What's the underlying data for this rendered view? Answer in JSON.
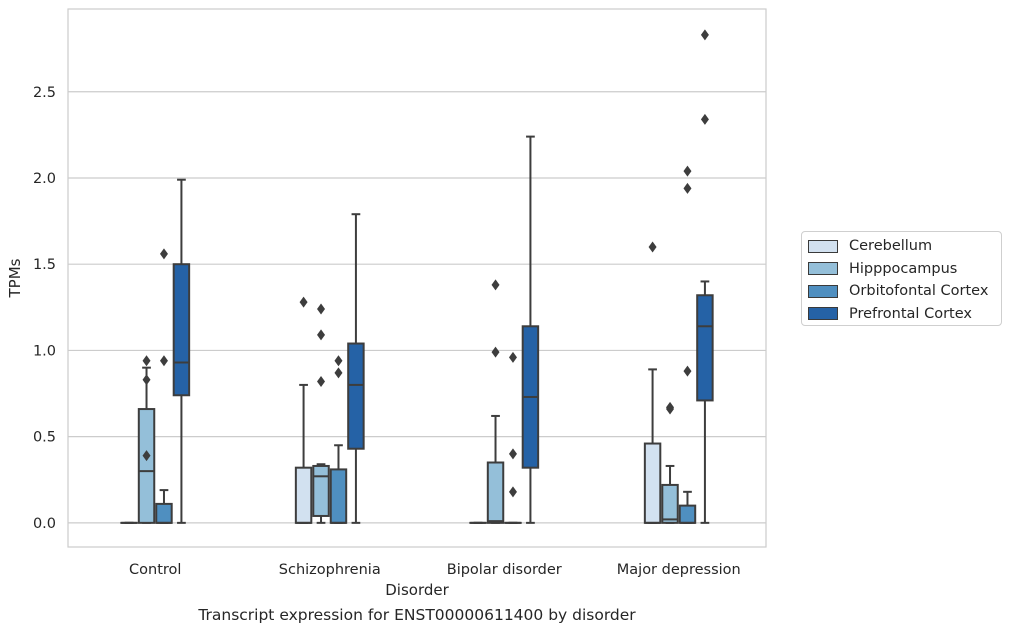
{
  "caption": "Transcript expression for ENST00000611400 by disorder",
  "chart_data": {
    "type": "boxplot",
    "title": "",
    "xlabel": "Disorder",
    "ylabel": "TPMs",
    "ylim": [
      -0.14,
      2.98
    ],
    "yticks": [
      0.0,
      0.5,
      1.0,
      1.5,
      2.0,
      2.5
    ],
    "ytick_labels": [
      "0.0",
      "0.5",
      "1.0",
      "1.5",
      "2.0",
      "2.5"
    ],
    "grid": "horizontal",
    "legend_position": "right",
    "categories": [
      "Control",
      "Schizophrenia",
      "Bipolar disorder",
      "Major depression"
    ],
    "series": [
      {
        "name": "Cerebellum",
        "color": "#d2e1f0",
        "boxes": [
          {
            "q1": 0.0,
            "median": 0.0,
            "q3": 0.0,
            "whislo": 0.0,
            "whishi": 0.0,
            "fliers": []
          },
          {
            "q1": 0.0,
            "median": 0.0,
            "q3": 0.32,
            "whislo": 0.0,
            "whishi": 0.8,
            "fliers": [
              1.28
            ]
          },
          {
            "q1": 0.0,
            "median": 0.0,
            "q3": 0.0,
            "whislo": 0.0,
            "whishi": 0.0,
            "fliers": []
          },
          {
            "q1": 0.0,
            "median": 0.0,
            "q3": 0.46,
            "whislo": 0.0,
            "whishi": 0.89,
            "fliers": [
              1.6
            ]
          }
        ]
      },
      {
        "name": "Hipppocampus",
        "color": "#94bfd9",
        "boxes": [
          {
            "q1": 0.0,
            "median": 0.3,
            "q3": 0.66,
            "whislo": 0.0,
            "whishi": 0.9,
            "fliers": [
              0.39,
              0.83,
              0.94
            ]
          },
          {
            "q1": 0.04,
            "median": 0.27,
            "q3": 0.33,
            "whislo": 0.0,
            "whishi": 0.34,
            "fliers": [
              0.82,
              1.09,
              1.24
            ]
          },
          {
            "q1": 0.0,
            "median": 0.01,
            "q3": 0.35,
            "whislo": 0.0,
            "whishi": 0.62,
            "fliers": [
              0.99,
              1.38
            ]
          },
          {
            "q1": 0.0,
            "median": 0.02,
            "q3": 0.22,
            "whislo": 0.0,
            "whishi": 0.33,
            "fliers": [
              0.66,
              0.67
            ]
          }
        ]
      },
      {
        "name": "Orbitofontal Cortex",
        "color": "#4f8fc0",
        "boxes": [
          {
            "q1": 0.0,
            "median": 0.0,
            "q3": 0.11,
            "whislo": 0.0,
            "whishi": 0.19,
            "fliers": [
              0.94,
              1.56
            ]
          },
          {
            "q1": 0.0,
            "median": 0.0,
            "q3": 0.31,
            "whislo": 0.0,
            "whishi": 0.45,
            "fliers": [
              0.87,
              0.94
            ]
          },
          {
            "q1": 0.0,
            "median": 0.0,
            "q3": 0.0,
            "whislo": 0.0,
            "whishi": 0.0,
            "fliers": [
              0.18,
              0.4,
              0.96
            ]
          },
          {
            "q1": 0.0,
            "median": 0.0,
            "q3": 0.1,
            "whislo": 0.0,
            "whishi": 0.18,
            "fliers": [
              0.88,
              1.94,
              2.04
            ]
          }
        ]
      },
      {
        "name": "Prefrontal Cortex",
        "color": "#2562a6",
        "boxes": [
          {
            "q1": 0.74,
            "median": 0.93,
            "q3": 1.5,
            "whislo": 0.0,
            "whishi": 1.99,
            "fliers": []
          },
          {
            "q1": 0.43,
            "median": 0.8,
            "q3": 1.04,
            "whislo": 0.0,
            "whishi": 1.79,
            "fliers": []
          },
          {
            "q1": 0.32,
            "median": 0.73,
            "q3": 1.14,
            "whislo": 0.0,
            "whishi": 2.24,
            "fliers": []
          },
          {
            "q1": 0.71,
            "median": 1.14,
            "q3": 1.32,
            "whislo": 0.0,
            "whishi": 1.4,
            "fliers": [
              2.34,
              2.83
            ]
          }
        ]
      }
    ]
  }
}
